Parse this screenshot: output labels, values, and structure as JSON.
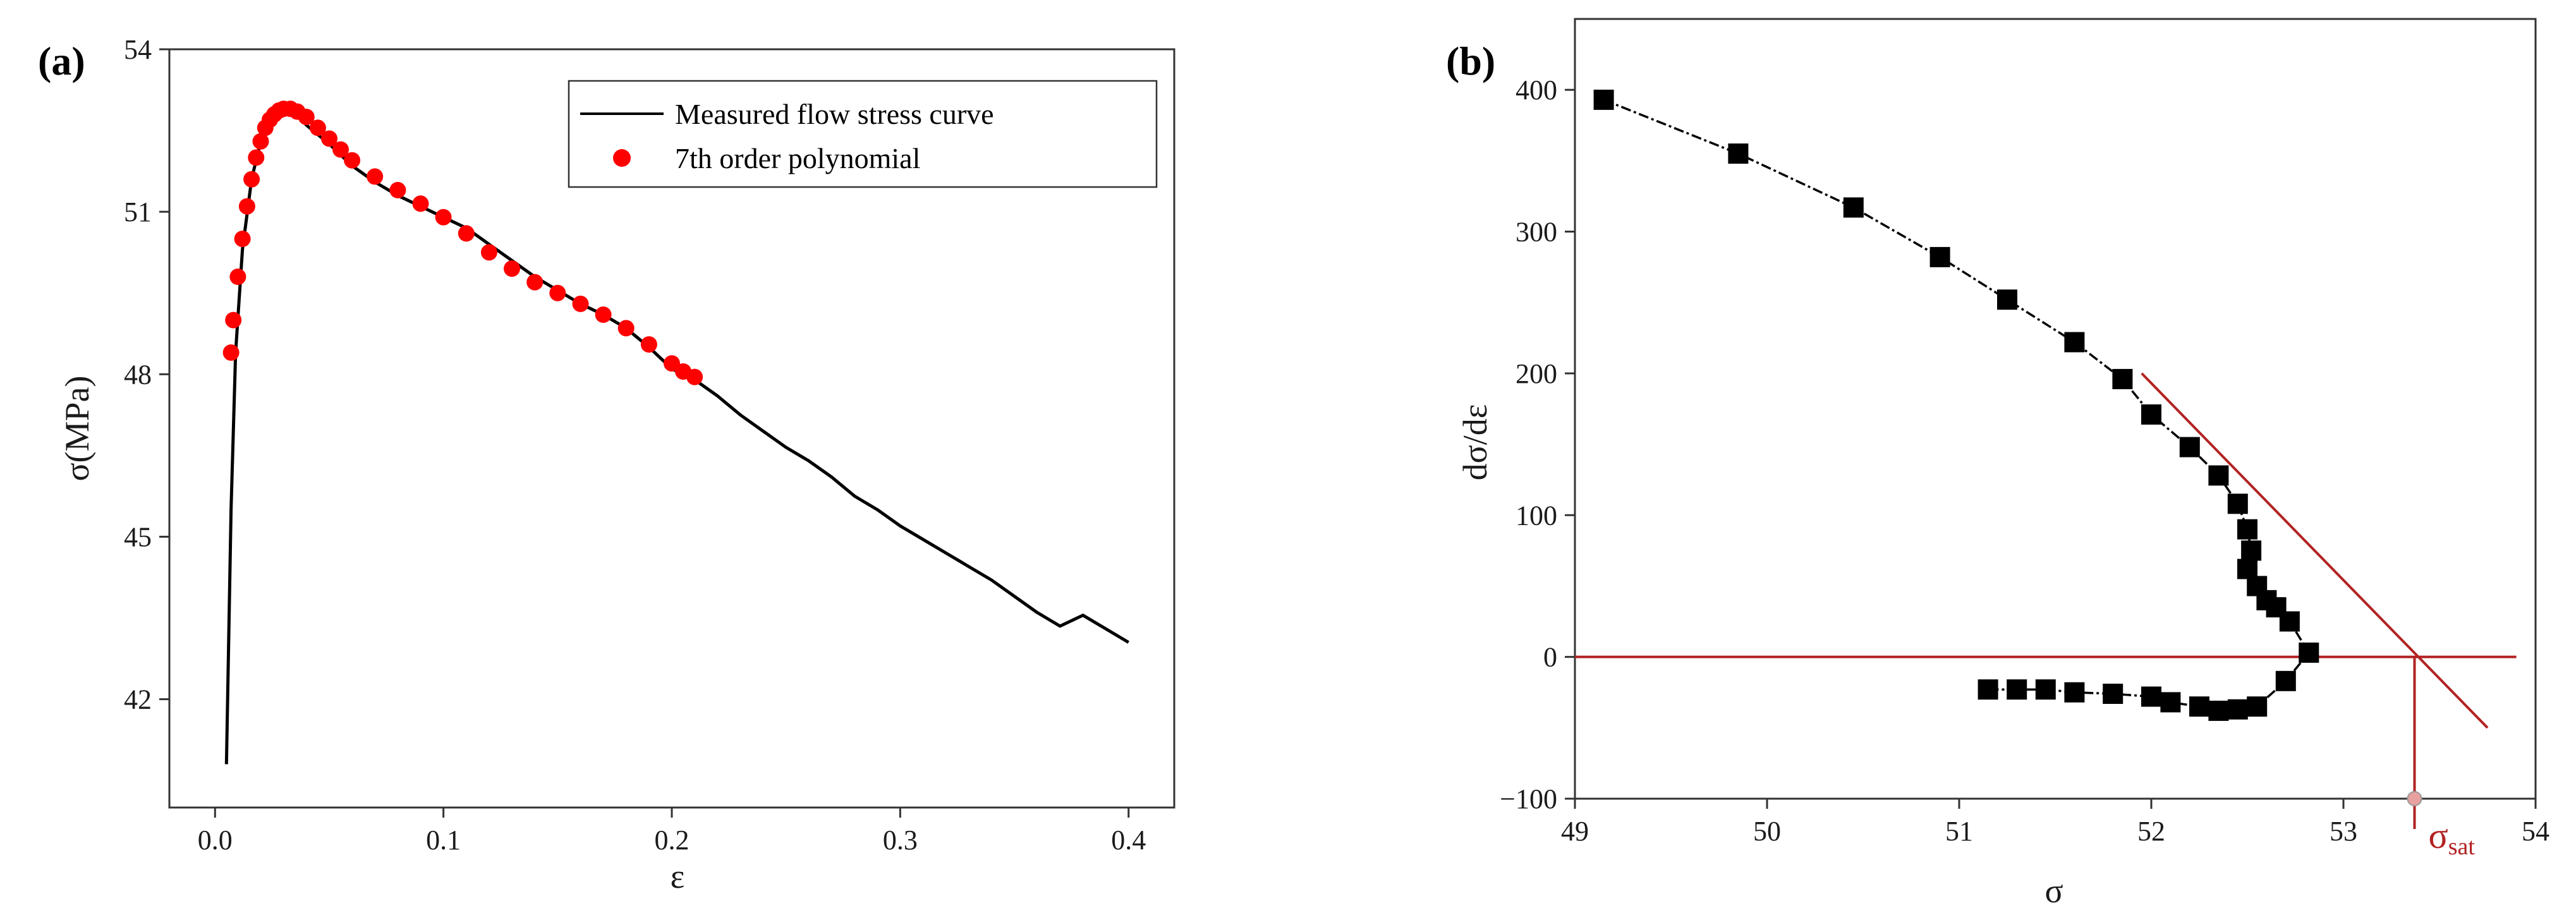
{
  "chart_data": [
    {
      "type": "line",
      "panel_label": "(a)",
      "title": "",
      "xlabel": "ε",
      "ylabel": "σ(MPa)",
      "xlim": [
        -0.02,
        0.42
      ],
      "ylim": [
        40.0,
        54.0
      ],
      "xticks": [
        0.0,
        0.1,
        0.2,
        0.3,
        0.4
      ],
      "xtick_labels": [
        "0.0",
        "0.1",
        "0.2",
        "0.3",
        "0.4"
      ],
      "yticks": [
        42,
        45,
        48,
        51,
        54
      ],
      "ytick_labels": [
        "42",
        "45",
        "48",
        "51",
        "54"
      ],
      "legend_position": "top-right",
      "series": [
        {
          "name": "Measured flow stress curve",
          "kind": "line",
          "color": "#000000",
          "x": [
            0.005,
            0.007,
            0.009,
            0.012,
            0.016,
            0.02,
            0.025,
            0.03,
            0.035,
            0.04,
            0.05,
            0.06,
            0.07,
            0.08,
            0.09,
            0.1,
            0.11,
            0.12,
            0.13,
            0.14,
            0.15,
            0.16,
            0.17,
            0.18,
            0.19,
            0.2,
            0.21,
            0.22,
            0.23,
            0.24,
            0.25,
            0.26,
            0.27,
            0.28,
            0.29,
            0.3,
            0.31,
            0.32,
            0.33,
            0.34,
            0.35,
            0.36,
            0.37,
            0.38,
            0.39,
            0.4
          ],
          "y": [
            40.8,
            45.5,
            48.4,
            50.3,
            51.6,
            52.3,
            52.75,
            52.9,
            52.85,
            52.6,
            52.25,
            51.85,
            51.55,
            51.3,
            51.1,
            50.9,
            50.7,
            50.4,
            50.1,
            49.8,
            49.55,
            49.3,
            49.1,
            48.85,
            48.5,
            48.1,
            47.9,
            47.6,
            47.25,
            46.95,
            46.65,
            46.4,
            46.1,
            45.75,
            45.5,
            45.2,
            44.95,
            44.7,
            44.45,
            44.2,
            43.9,
            43.6,
            43.35,
            43.55,
            43.3,
            43.05
          ]
        },
        {
          "name": "7th order polynomial",
          "kind": "scatter",
          "color": "#ff0000",
          "x": [
            0.007,
            0.008,
            0.01,
            0.012,
            0.014,
            0.016,
            0.018,
            0.02,
            0.022,
            0.024,
            0.026,
            0.028,
            0.03,
            0.033,
            0.036,
            0.04,
            0.045,
            0.05,
            0.055,
            0.06,
            0.07,
            0.08,
            0.09,
            0.1,
            0.11,
            0.12,
            0.13,
            0.14,
            0.15,
            0.16,
            0.17,
            0.18,
            0.19,
            0.2,
            0.205,
            0.21
          ],
          "y": [
            48.4,
            49.0,
            49.8,
            50.5,
            51.1,
            51.6,
            52.0,
            52.3,
            52.55,
            52.7,
            52.8,
            52.87,
            52.9,
            52.9,
            52.85,
            52.75,
            52.55,
            52.35,
            52.15,
            51.95,
            51.65,
            51.4,
            51.15,
            50.9,
            50.6,
            50.25,
            49.95,
            49.7,
            49.5,
            49.3,
            49.1,
            48.85,
            48.55,
            48.2,
            48.05,
            47.95
          ]
        }
      ]
    },
    {
      "type": "scatter",
      "panel_label": "(b)",
      "title": "",
      "xlabel": "σ",
      "ylabel": "dσ/dε",
      "xlim": [
        49,
        54
      ],
      "ylim": [
        -100,
        450
      ],
      "xticks": [
        49,
        50,
        51,
        52,
        53,
        54
      ],
      "xtick_labels": [
        "49",
        "50",
        "51",
        "52",
        "53",
        "54"
      ],
      "yticks": [
        -100,
        0,
        100,
        200,
        300,
        400
      ],
      "ytick_labels": [
        "−100",
        "0",
        "100",
        "200",
        "300",
        "400"
      ],
      "series": [
        {
          "name": "dσ/dε",
          "kind": "line+markers",
          "color": "#000000",
          "x": [
            49.15,
            49.85,
            50.45,
            50.9,
            51.25,
            51.6,
            51.85,
            52.0,
            52.2,
            52.35,
            52.45,
            52.5,
            52.52,
            52.5,
            52.55,
            52.6,
            52.65,
            52.72,
            52.82,
            52.7,
            52.55,
            52.45,
            52.35,
            52.25,
            52.1,
            52.0,
            51.8,
            51.6,
            51.45,
            51.3,
            51.15
          ],
          "y": [
            393,
            355,
            317,
            282,
            252,
            222,
            196,
            171,
            148,
            128,
            108,
            90,
            75,
            62,
            50,
            40,
            35,
            25,
            3,
            -17,
            -35,
            -37,
            -38,
            -35,
            -32,
            -28,
            -26,
            -25,
            -23,
            -23,
            -23
          ]
        },
        {
          "name": "zero line",
          "kind": "line",
          "color": "#b22222",
          "x": [
            49,
            53.9
          ],
          "y": [
            0,
            0
          ]
        },
        {
          "name": "tangent",
          "kind": "line",
          "color": "#b22222",
          "x": [
            51.95,
            53.75
          ],
          "y": [
            200,
            -50
          ]
        }
      ],
      "annotation": {
        "label": "σ",
        "subscript": "sat",
        "x": 53.37,
        "y": -100
      }
    }
  ]
}
